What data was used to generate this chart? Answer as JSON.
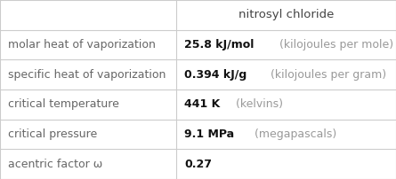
{
  "title": "nitrosyl chloride",
  "rows": [
    {
      "label": "molar heat of vaporization",
      "value_bold": "25.8 kJ/mol",
      "value_light": " (kilojoules per mole)"
    },
    {
      "label": "specific heat of vaporization",
      "value_bold": "0.394 kJ/g",
      "value_light": " (kilojoules per gram)"
    },
    {
      "label": "critical temperature",
      "value_bold": "441 K",
      "value_light": " (kelvins)"
    },
    {
      "label": "critical pressure",
      "value_bold": "9.1 MPa",
      "value_light": " (megapascals)"
    },
    {
      "label": "acentric factor ω",
      "value_bold": "0.27",
      "value_light": ""
    }
  ],
  "col_split": 0.445,
  "grid_color": "#cccccc",
  "label_color": "#666666",
  "value_bold_color": "#111111",
  "value_light_color": "#999999",
  "title_color": "#444444",
  "bg_color": "#ffffff",
  "title_fontsize": 9.5,
  "label_fontsize": 9,
  "value_fontsize": 9
}
